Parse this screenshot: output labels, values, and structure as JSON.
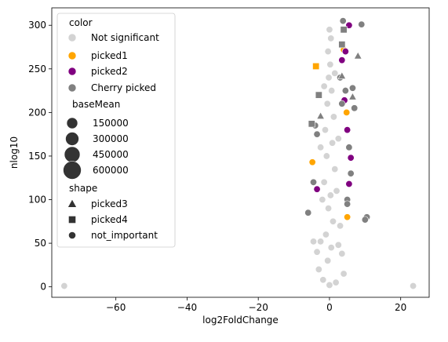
{
  "chart_data": {
    "type": "scatter",
    "title": "",
    "xlabel": "log2FoldChange",
    "ylabel": "nlog10",
    "xlim": [
      -78,
      28
    ],
    "ylim": [
      -12,
      320
    ],
    "xticks": [
      -60,
      -40,
      -20,
      0,
      20
    ],
    "yticks": [
      0,
      50,
      100,
      150,
      200,
      250,
      300
    ],
    "xtick_labels": [
      "−60",
      "−40",
      "−20",
      "0",
      "20"
    ],
    "ytick_labels": [
      "0",
      "50",
      "100",
      "150",
      "200",
      "250",
      "300"
    ],
    "grid": false,
    "legend_position": "top-left",
    "colors": {
      "not_significant": "#d3d3d3",
      "picked1": "#ffa500",
      "picked2": "#800080",
      "cherry_picked": "#808080",
      "shape_marker": "#333333",
      "point_edge": "#ffffff"
    },
    "legend": {
      "color_title": "color",
      "color_entries": [
        {
          "label": "Not significant",
          "color": "#d3d3d3"
        },
        {
          "label": "picked1",
          "color": "#ffa500"
        },
        {
          "label": "picked2",
          "color": "#800080"
        },
        {
          "label": "Cherry picked",
          "color": "#808080"
        }
      ],
      "size_title": "baseMean",
      "size_entries": [
        {
          "label": "150000",
          "value": 150000
        },
        {
          "label": "300000",
          "value": 300000
        },
        {
          "label": "450000",
          "value": 450000
        },
        {
          "label": "600000",
          "value": 600000
        }
      ],
      "shape_title": "shape",
      "shape_entries": [
        {
          "label": "picked3",
          "marker": "triangle"
        },
        {
          "label": "picked4",
          "marker": "square"
        },
        {
          "label": "not_important",
          "marker": "circle"
        }
      ]
    },
    "series": [
      {
        "category": "Not significant",
        "marker": "circle",
        "points": [
          {
            "x": -74.5,
            "y": 1
          },
          {
            "x": 23.5,
            "y": 1
          },
          {
            "x": -0.5,
            "y": 30
          },
          {
            "x": 0.5,
            "y": 45
          },
          {
            "x": -1.0,
            "y": 60
          },
          {
            "x": 1.0,
            "y": 75
          },
          {
            "x": -0.3,
            "y": 90
          },
          {
            "x": 0.3,
            "y": 105
          },
          {
            "x": -1.5,
            "y": 120
          },
          {
            "x": 1.5,
            "y": 135
          },
          {
            "x": -0.8,
            "y": 150
          },
          {
            "x": 0.8,
            "y": 165
          },
          {
            "x": -1.2,
            "y": 180
          },
          {
            "x": 1.2,
            "y": 195
          },
          {
            "x": -0.6,
            "y": 210
          },
          {
            "x": 0.6,
            "y": 225
          },
          {
            "x": -0.2,
            "y": 240
          },
          {
            "x": 0.2,
            "y": 255
          },
          {
            "x": -0.4,
            "y": 270
          },
          {
            "x": 0.4,
            "y": 285
          },
          {
            "x": 0.0,
            "y": 295
          },
          {
            "x": -2.5,
            "y": 52
          },
          {
            "x": 2.5,
            "y": 48
          },
          {
            "x": -3.5,
            "y": 40
          },
          {
            "x": 3.5,
            "y": 38
          },
          {
            "x": -4.5,
            "y": 52
          },
          {
            "x": 3.0,
            "y": 70
          },
          {
            "x": -3.0,
            "y": 20
          },
          {
            "x": 4.0,
            "y": 15
          },
          {
            "x": -1.8,
            "y": 8
          },
          {
            "x": 1.8,
            "y": 5
          },
          {
            "x": 0.0,
            "y": 2
          },
          {
            "x": -2.0,
            "y": 100
          },
          {
            "x": 2.0,
            "y": 110
          },
          {
            "x": -2.5,
            "y": 160
          },
          {
            "x": 2.5,
            "y": 170
          },
          {
            "x": -1.5,
            "y": 230
          },
          {
            "x": 1.5,
            "y": 245
          }
        ]
      },
      {
        "category": "picked1",
        "marker": "circle",
        "points": [
          {
            "x": 5.0,
            "y": 80
          },
          {
            "x": 4.8,
            "y": 200
          },
          {
            "x": -4.8,
            "y": 143
          },
          {
            "x": 4.0,
            "y": 272
          }
        ]
      },
      {
        "category": "picked1",
        "marker": "square",
        "points": [
          {
            "x": -3.8,
            "y": 253
          }
        ]
      },
      {
        "category": "picked2",
        "marker": "circle",
        "points": [
          {
            "x": 5.5,
            "y": 300
          },
          {
            "x": 4.5,
            "y": 270
          },
          {
            "x": 3.5,
            "y": 260
          },
          {
            "x": -3.5,
            "y": 112
          },
          {
            "x": 5.0,
            "y": 180
          },
          {
            "x": 6.0,
            "y": 148
          },
          {
            "x": 5.5,
            "y": 118
          },
          {
            "x": 4.2,
            "y": 214
          }
        ]
      },
      {
        "category": "Cherry picked",
        "marker": "circle",
        "points": [
          {
            "x": 9.0,
            "y": 301
          },
          {
            "x": 3.8,
            "y": 305
          },
          {
            "x": 6.5,
            "y": 228
          },
          {
            "x": 4.5,
            "y": 225
          },
          {
            "x": 3.5,
            "y": 210
          },
          {
            "x": 5.5,
            "y": 160
          },
          {
            "x": 6.0,
            "y": 130
          },
          {
            "x": 5.0,
            "y": 100
          },
          {
            "x": 10.5,
            "y": 80
          },
          {
            "x": 10.0,
            "y": 77
          },
          {
            "x": -6.0,
            "y": 85
          },
          {
            "x": -4.5,
            "y": 120
          },
          {
            "x": -3.5,
            "y": 175
          },
          {
            "x": 3.0,
            "y": 240
          },
          {
            "x": 7.0,
            "y": 205
          },
          {
            "x": -4.0,
            "y": 185
          },
          {
            "x": 5.0,
            "y": 95
          }
        ]
      },
      {
        "category": "Cherry picked",
        "marker": "triangle",
        "points": [
          {
            "x": 8.0,
            "y": 265
          },
          {
            "x": 6.5,
            "y": 218
          },
          {
            "x": 3.5,
            "y": 242
          },
          {
            "x": -2.5,
            "y": 196
          }
        ]
      },
      {
        "category": "Cherry picked",
        "marker": "square",
        "points": [
          {
            "x": 3.5,
            "y": 278
          },
          {
            "x": -3.0,
            "y": 220
          },
          {
            "x": -5.0,
            "y": 187
          },
          {
            "x": 4.0,
            "y": 295
          }
        ]
      }
    ]
  }
}
